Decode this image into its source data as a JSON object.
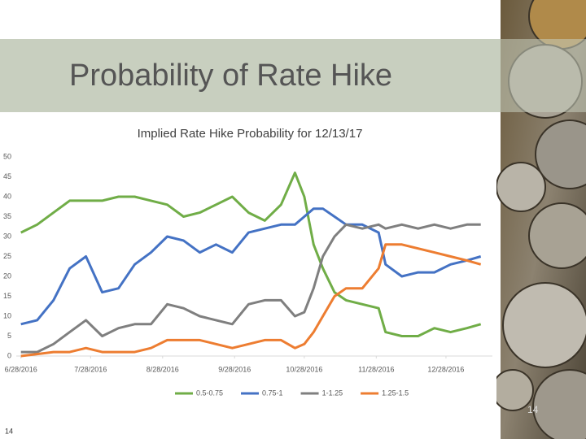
{
  "slide": {
    "title": "Probability of Rate Hike",
    "page_number": "14"
  },
  "chart_data": {
    "type": "line",
    "title": "Implied Rate Hike Probability for 12/13/17",
    "x": [
      "2016-06-28",
      "2016-07-05",
      "2016-07-12",
      "2016-07-19",
      "2016-07-26",
      "2016-08-02",
      "2016-08-09",
      "2016-08-16",
      "2016-08-23",
      "2016-08-30",
      "2016-09-06",
      "2016-09-13",
      "2016-09-20",
      "2016-09-27",
      "2016-10-04",
      "2016-10-11",
      "2016-10-18",
      "2016-10-24",
      "2016-10-28",
      "2016-11-01",
      "2016-11-05",
      "2016-11-10",
      "2016-11-15",
      "2016-11-22",
      "2016-11-29",
      "2016-12-02",
      "2016-12-09",
      "2016-12-16",
      "2016-12-23",
      "2016-12-30",
      "2017-01-06",
      "2017-01-12"
    ],
    "series": [
      {
        "name": "0.5-0.75",
        "color": "#70ad47",
        "values": [
          31,
          33,
          36,
          39,
          39,
          39,
          40,
          40,
          39,
          38,
          35,
          36,
          38,
          40,
          36,
          34,
          38,
          46,
          40,
          28,
          22,
          16,
          14,
          13,
          12,
          6,
          5,
          5,
          7,
          6,
          7,
          8
        ]
      },
      {
        "name": "0.75-1",
        "color": "#4472c4",
        "values": [
          8,
          9,
          14,
          22,
          25,
          16,
          17,
          23,
          26,
          30,
          29,
          26,
          28,
          26,
          31,
          32,
          33,
          33,
          35,
          37,
          37,
          35,
          33,
          33,
          31,
          23,
          20,
          21,
          21,
          23,
          24,
          25
        ]
      },
      {
        "name": "1-1.25",
        "color": "#7f7f7f",
        "values": [
          1,
          1,
          3,
          6,
          9,
          5,
          7,
          8,
          8,
          13,
          12,
          10,
          9,
          8,
          13,
          14,
          14,
          10,
          11,
          17,
          25,
          30,
          33,
          32,
          33,
          32,
          33,
          32,
          33,
          32,
          33,
          33
        ]
      },
      {
        "name": "1.25-1.5",
        "color": "#ed7d31",
        "values": [
          0,
          0.5,
          1,
          1,
          2,
          1,
          1,
          1,
          2,
          4,
          4,
          4,
          3,
          2,
          3,
          4,
          4,
          2,
          3,
          6,
          10,
          15,
          17,
          17,
          22,
          28,
          28,
          27,
          26,
          25,
          24,
          23
        ]
      }
    ],
    "xlim": [
      "2016-06-26",
      "2017-01-17"
    ],
    "xticks": [
      {
        "value": "2016-06-28",
        "label": "6/28/2016"
      },
      {
        "value": "2016-07-28",
        "label": "7/28/2016"
      },
      {
        "value": "2016-08-28",
        "label": "8/28/2016"
      },
      {
        "value": "2016-09-28",
        "label": "9/28/2016"
      },
      {
        "value": "2016-10-28",
        "label": "10/28/2016"
      },
      {
        "value": "2016-11-28",
        "label": "11/28/2016"
      },
      {
        "value": "2016-12-28",
        "label": "12/28/2016"
      }
    ],
    "ylim": [
      0,
      50
    ],
    "yticks": [
      0,
      5,
      10,
      15,
      20,
      25,
      30,
      35,
      40,
      45,
      50
    ],
    "grid": false,
    "legend": "bottom"
  }
}
